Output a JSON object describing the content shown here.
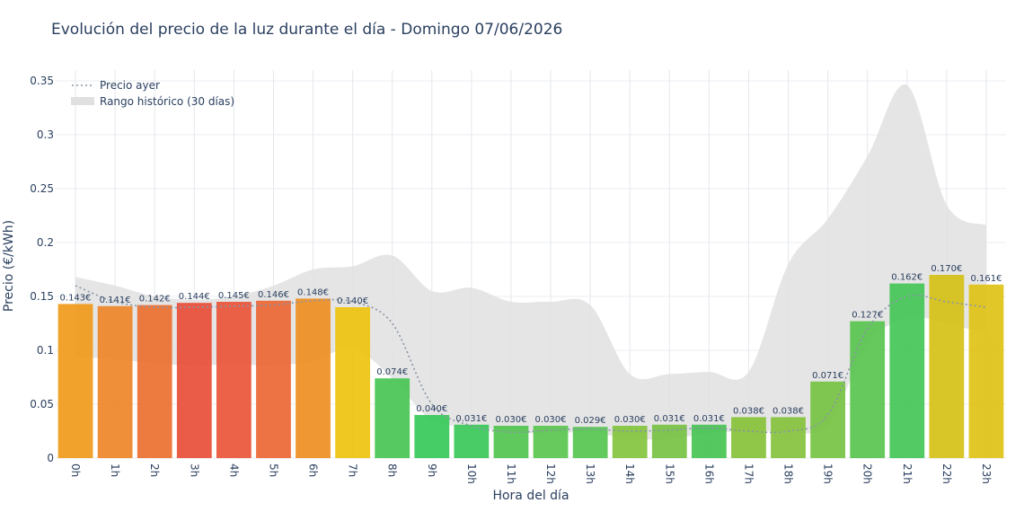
{
  "chart_data": {
    "type": "bar",
    "title": "Evolución del precio de la luz durante el día - Domingo 07/06/2026",
    "xlabel": "Hora del día",
    "ylabel": "Precio (€/kWh)",
    "ylim": [
      0,
      0.36
    ],
    "yticks": [
      "0",
      "0.05",
      "0.1",
      "0.15",
      "0.2",
      "0.25",
      "0.3",
      "0.35"
    ],
    "ytick_values": [
      0,
      0.05,
      0.1,
      0.15,
      0.2,
      0.25,
      0.3,
      0.35
    ],
    "grid": true,
    "legend_position": "top-left",
    "categories": [
      "0h",
      "1h",
      "2h",
      "3h",
      "4h",
      "5h",
      "6h",
      "7h",
      "8h",
      "9h",
      "10h",
      "11h",
      "12h",
      "13h",
      "14h",
      "15h",
      "16h",
      "17h",
      "18h",
      "19h",
      "20h",
      "21h",
      "22h",
      "23h"
    ],
    "values": [
      0.143,
      0.141,
      0.142,
      0.144,
      0.145,
      0.146,
      0.148,
      0.14,
      0.074,
      0.04,
      0.031,
      0.03,
      0.03,
      0.029,
      0.03,
      0.031,
      0.031,
      0.038,
      0.038,
      0.071,
      0.127,
      0.162,
      0.17,
      0.161
    ],
    "data_labels": [
      "0.143€",
      "0.141€",
      "0.142€",
      "0.144€",
      "0.145€",
      "0.146€",
      "0.148€",
      "0.140€",
      "0.074€",
      "0.040€",
      "0.031€",
      "0.030€",
      "0.030€",
      "0.029€",
      "0.030€",
      "0.031€",
      "0.031€",
      "0.038€",
      "0.038€",
      "0.071€",
      "0.127€",
      "0.162€",
      "0.170€",
      "0.161€"
    ],
    "bar_colors": [
      "#ef9a1a",
      "#ee8628",
      "#ec7030",
      "#e94e38",
      "#e9553a",
      "#eb6634",
      "#ee8e22",
      "#efc30f",
      "#48c553",
      "#37c959",
      "#3ac758",
      "#52c450",
      "#5ac54e",
      "#56c550",
      "#82c43e",
      "#76c243",
      "#46c353",
      "#87c23a",
      "#84c23c",
      "#76c343",
      "#59c44f",
      "#44c556",
      "#d5c117",
      "#e0c217"
    ],
    "series": [
      {
        "name": "Precio ayer",
        "style": "dotted",
        "color": "#8a94a6",
        "values": [
          0.16,
          0.145,
          0.14,
          0.14,
          0.141,
          0.142,
          0.146,
          0.145,
          0.125,
          0.05,
          0.03,
          0.024,
          0.026,
          0.027,
          0.025,
          0.026,
          0.028,
          0.025,
          0.025,
          0.04,
          0.12,
          0.15,
          0.145,
          0.14
        ]
      },
      {
        "name": "Rango histórico (30 días)",
        "style": "band",
        "color": "#e0e0e0",
        "upper": [
          0.168,
          0.16,
          0.15,
          0.147,
          0.15,
          0.16,
          0.175,
          0.178,
          0.188,
          0.155,
          0.158,
          0.145,
          0.145,
          0.142,
          0.078,
          0.078,
          0.08,
          0.08,
          0.18,
          0.222,
          0.28,
          0.346,
          0.235,
          0.216
        ],
        "lower": [
          0.094,
          0.092,
          0.088,
          0.086,
          0.087,
          0.086,
          0.09,
          0.102,
          0.074,
          0.035,
          0.03,
          0.024,
          0.023,
          0.024,
          0.018,
          0.018,
          0.023,
          0.025,
          0.025,
          0.03,
          0.105,
          0.13,
          0.125,
          0.115
        ]
      }
    ]
  }
}
